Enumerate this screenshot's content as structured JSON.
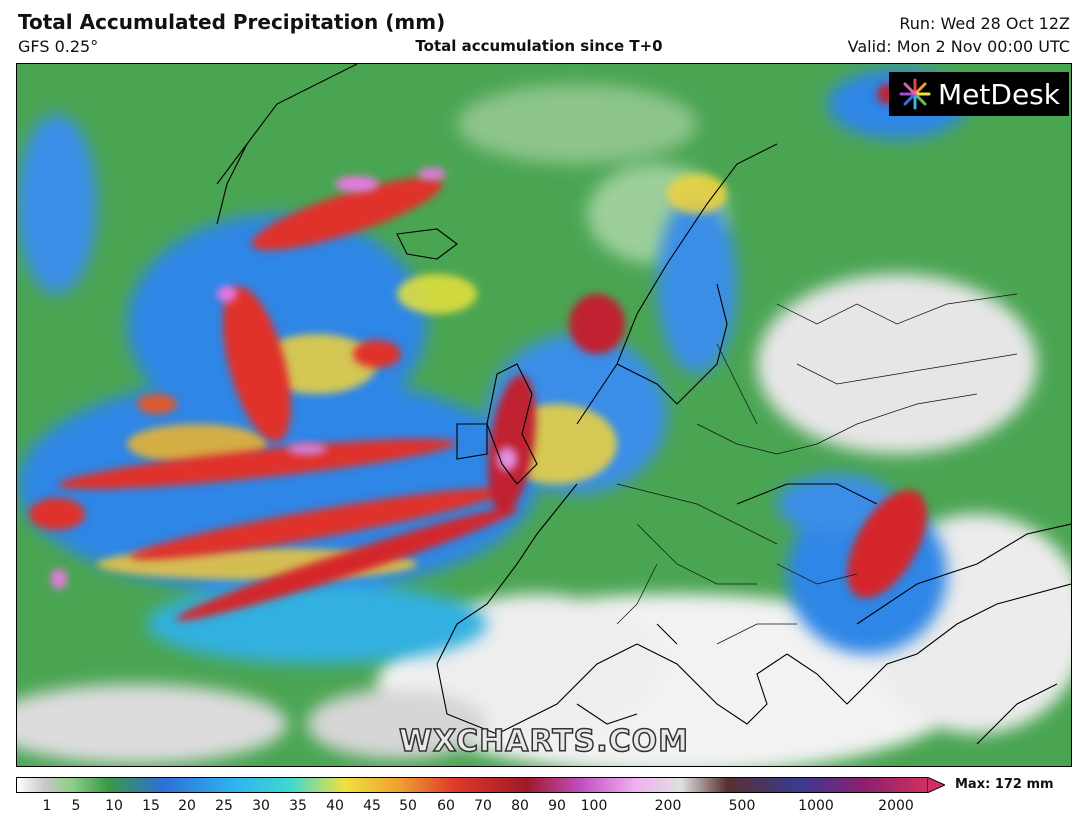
{
  "header": {
    "title": "Total Accumulated Precipitation (mm)",
    "model": "GFS 0.25°",
    "subtitle": "Total accumulation since T+0",
    "run": "Run: Wed 28 Oct 12Z",
    "valid": "Valid: Mon 2 Nov 00:00 UTC"
  },
  "branding": {
    "logo_text": "MetDesk",
    "watermark": "WXCHARTS.COM"
  },
  "legend": {
    "ticks": [
      "1",
      "5",
      "10",
      "15",
      "20",
      "25",
      "30",
      "35",
      "40",
      "45",
      "50",
      "60",
      "70",
      "80",
      "90",
      "100",
      "200",
      "500",
      "1000",
      "2000"
    ],
    "max_label": "Max: 172 mm"
  },
  "colors": {
    "land_dry": "#f4f4f4",
    "light_rain": "#3a9a45",
    "moderate": "#2f7fe0",
    "heavy": "#e0322a",
    "extreme": "#9b1a36",
    "peak": "#e070e0"
  }
}
